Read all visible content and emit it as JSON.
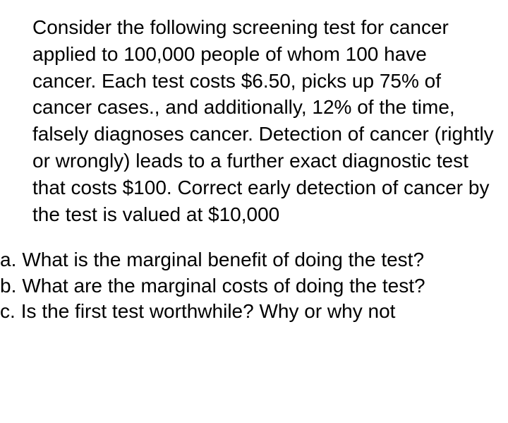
{
  "main": {
    "paragraph": "Consider the following screening test for cancer applied to 100,000 people of whom 100 have cancer. Each test costs $6.50, picks up 75% of cancer cases., and additionally, 12% of the time, falsely diagnoses cancer. Detection of cancer (rightly or wrongly) leads to a further exact diagnostic test that costs $100. Correct early detection of cancer by the test is valued at $10,000"
  },
  "questions": {
    "items": [
      {
        "label": "a.",
        "text": "What is the marginal benefit of doing the test?"
      },
      {
        "label": "b.",
        "text": "What are the marginal costs of doing the test?"
      },
      {
        "label": "c.",
        "text": "Is the first test worthwhile? Why or why not"
      }
    ]
  },
  "style": {
    "background_color": "#ffffff",
    "text_color": "#000000",
    "body_fontsize": 28,
    "body_lineheight": 1.35,
    "font_family": "sans-serif"
  }
}
